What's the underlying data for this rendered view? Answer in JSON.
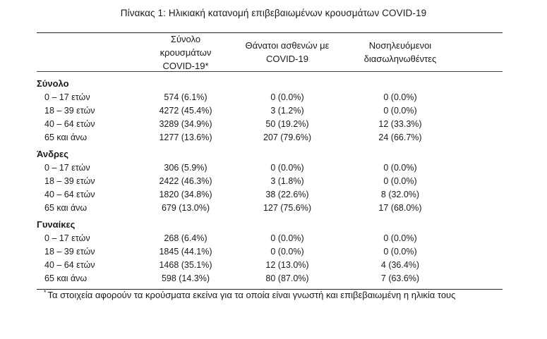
{
  "title": "Πίνακας 1: Ηλικιακή κατανομή επιβεβαιωμένων κρουσμάτων COVID-19",
  "columns": [
    {
      "line1": "Σύνολο κρουσμάτων",
      "line2": "COVID-19*"
    },
    {
      "line1": "Θάνατοι ασθενών με",
      "line2": "COVID-19"
    },
    {
      "line1": "Νοσηλευόμενοι",
      "line2": "διασωληνωθέντες"
    }
  ],
  "groups": [
    {
      "label": "Σύνολο",
      "rows": [
        {
          "age": "0 – 17 ετών",
          "cases": "574 (6.1%)",
          "deaths": "0 (0.0%)",
          "intubated": "0 (0.0%)"
        },
        {
          "age": "18 – 39 ετών",
          "cases": "4272 (45.4%)",
          "deaths": "3 (1.2%)",
          "intubated": "0 (0.0%)"
        },
        {
          "age": "40 – 64 ετών",
          "cases": "3289 (34.9%)",
          "deaths": "50 (19.2%)",
          "intubated": "12 (33.3%)"
        },
        {
          "age": "65 και άνω",
          "cases": "1277 (13.6%)",
          "deaths": "207 (79.6%)",
          "intubated": "24 (66.7%)"
        }
      ]
    },
    {
      "label": "Άνδρες",
      "rows": [
        {
          "age": "0 – 17 ετών",
          "cases": "306 (5.9%)",
          "deaths": "0 (0.0%)",
          "intubated": "0 (0.0%)"
        },
        {
          "age": "18 – 39 ετών",
          "cases": "2422 (46.3%)",
          "deaths": "3 (1.8%)",
          "intubated": "0 (0.0%)"
        },
        {
          "age": "40 – 64 ετών",
          "cases": "1820 (34.8%)",
          "deaths": "38 (22.6%)",
          "intubated": "8 (32.0%)"
        },
        {
          "age": "65 και άνω",
          "cases": "679 (13.0%)",
          "deaths": "127 (75.6%)",
          "intubated": "17 (68.0%)"
        }
      ]
    },
    {
      "label": "Γυναίκες",
      "rows": [
        {
          "age": "0 – 17 ετών",
          "cases": "268 (6.4%)",
          "deaths": "0 (0.0%)",
          "intubated": "0 (0.0%)"
        },
        {
          "age": "18 – 39 ετών",
          "cases": "1845 (44.1%)",
          "deaths": "0 (0.0%)",
          "intubated": "0 (0.0%)"
        },
        {
          "age": "40 – 64 ετών",
          "cases": "1468 (35.1%)",
          "deaths": "12 (13.0%)",
          "intubated": "4 (36.4%)"
        },
        {
          "age": "65 και άνω",
          "cases": "598 (14.3%)",
          "deaths": "80 (87.0%)",
          "intubated": "7 (63.6%)"
        }
      ]
    }
  ],
  "footnote": {
    "marker": "*",
    "text": "Τα στοιχεία αφορούν τα κρούσματα εκείνα για τα οποία είναι γνωστή και επιβεβαιωμένη η ηλικία τους"
  }
}
